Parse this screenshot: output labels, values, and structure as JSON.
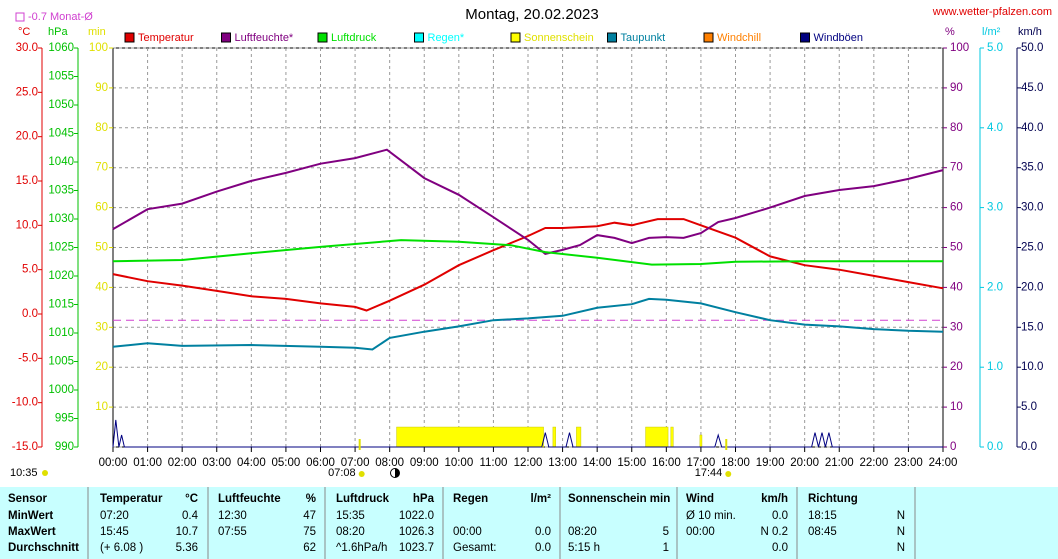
{
  "chart_data": {
    "type": "line",
    "title": "Montag, 20.02.2023",
    "source": "www.wetter-pfalzen.com",
    "monthly_mean": {
      "label": "-0.7 Monat-Ø",
      "value": -0.7,
      "color": "#d040d0"
    },
    "now": {
      "label": "10:35"
    },
    "sunrise": {
      "label": "07:08",
      "x": 7.133
    },
    "sunset": {
      "label": "17:44",
      "x": 17.733
    },
    "xlim": [
      0,
      24
    ],
    "xticks": [
      {
        "value": 0,
        "label": "00:00"
      },
      {
        "value": 1,
        "label": "01:00"
      },
      {
        "value": 2,
        "label": "02:00"
      },
      {
        "value": 3,
        "label": "03:00"
      },
      {
        "value": 4,
        "label": "04:00"
      },
      {
        "value": 5,
        "label": "05:00"
      },
      {
        "value": 6,
        "label": "06:00"
      },
      {
        "value": 7,
        "label": "07:00"
      },
      {
        "value": 8,
        "label": "08:00"
      },
      {
        "value": 9,
        "label": "09:00"
      },
      {
        "value": 10,
        "label": "10:00"
      },
      {
        "value": 11,
        "label": "11:00"
      },
      {
        "value": 12,
        "label": "12:00"
      },
      {
        "value": 13,
        "label": "13:00"
      },
      {
        "value": 14,
        "label": "14:00"
      },
      {
        "value": 15,
        "label": "15:00"
      },
      {
        "value": 16,
        "label": "16:00"
      },
      {
        "value": 17,
        "label": "17:00"
      },
      {
        "value": 18,
        "label": "18:00"
      },
      {
        "value": 19,
        "label": "19:00"
      },
      {
        "value": 20,
        "label": "20:00"
      },
      {
        "value": 21,
        "label": "21:00"
      },
      {
        "value": 22,
        "label": "22:00"
      },
      {
        "value": 23,
        "label": "23:00"
      },
      {
        "value": 24,
        "label": "24:00"
      }
    ],
    "grid": true,
    "axes": {
      "temp": {
        "unit": "°C",
        "color": "#e00000",
        "lim": [
          -15,
          30
        ],
        "ticks": [
          {
            "value": 30,
            "label": "30.0"
          },
          {
            "value": 25,
            "label": "25.0"
          },
          {
            "value": 20,
            "label": "20.0"
          },
          {
            "value": 15,
            "label": "15.0"
          },
          {
            "value": 10,
            "label": "10.0"
          },
          {
            "value": 5,
            "label": "5.0"
          },
          {
            "value": 0,
            "label": "0.0"
          },
          {
            "value": -5,
            "label": "-5.0"
          },
          {
            "value": -10,
            "label": "-10.0"
          },
          {
            "value": -15,
            "label": "-15.0"
          }
        ]
      },
      "hpa": {
        "unit": "hPa",
        "color": "#00c000",
        "lim": [
          990,
          1060
        ],
        "ticks": [
          1060,
          1055,
          1050,
          1045,
          1040,
          1035,
          1030,
          1025,
          1020,
          1015,
          1010,
          1005,
          1000,
          995,
          990
        ]
      },
      "min": {
        "unit": "min",
        "color": "#e0e000",
        "lim": [
          0,
          100
        ],
        "ticks": [
          100,
          90,
          80,
          70,
          60,
          50,
          40,
          30,
          20,
          10
        ]
      },
      "pct": {
        "unit": "%",
        "color": "#800080",
        "lim": [
          0,
          100
        ],
        "ticks": [
          100,
          90,
          80,
          70,
          60,
          50,
          40,
          30,
          20,
          10,
          0
        ]
      },
      "rain": {
        "unit": "l/m²",
        "color": "#00c8e0",
        "lim": [
          0,
          5
        ],
        "ticks": [
          {
            "value": 5,
            "label": "5.0"
          },
          {
            "value": 4,
            "label": "4.0"
          },
          {
            "value": 3,
            "label": "3.0"
          },
          {
            "value": 2,
            "label": "2.0"
          },
          {
            "value": 1,
            "label": "1.0"
          },
          {
            "value": 0,
            "label": "0.0"
          }
        ]
      },
      "kmh": {
        "unit": "km/h",
        "color": "#000050",
        "lim": [
          0,
          50
        ],
        "ticks": [
          {
            "value": 50,
            "label": "50.0"
          },
          {
            "value": 45,
            "label": "45.0"
          },
          {
            "value": 40,
            "label": "40.0"
          },
          {
            "value": 35,
            "label": "35.0"
          },
          {
            "value": 30,
            "label": "30.0"
          },
          {
            "value": 25,
            "label": "25.0"
          },
          {
            "value": 20,
            "label": "20.0"
          },
          {
            "value": 15,
            "label": "15.0"
          },
          {
            "value": 10,
            "label": "10.0"
          },
          {
            "value": 5,
            "label": "5.0"
          },
          {
            "value": 0,
            "label": "0.0"
          }
        ]
      }
    },
    "series": [
      {
        "name": "Temperatur",
        "color": "#e00000",
        "axis": "temp",
        "x": [
          0,
          1,
          2,
          3,
          4,
          5,
          6,
          7,
          7.33,
          8,
          9,
          10,
          11,
          12,
          12.5,
          13,
          14,
          14.5,
          15,
          15.75,
          16.5,
          17,
          18,
          19,
          20,
          21,
          22,
          23,
          24
        ],
        "values": [
          4.5,
          3.7,
          3.2,
          2.6,
          2.0,
          1.7,
          1.2,
          0.8,
          0.4,
          1.5,
          3.3,
          5.5,
          7.2,
          8.8,
          9.7,
          9.7,
          9.9,
          10.3,
          10.0,
          10.7,
          10.7,
          10.0,
          8.6,
          6.5,
          5.5,
          5.0,
          4.3,
          3.6,
          2.9
        ]
      },
      {
        "name": "Luftfeuchte*",
        "color": "#800080",
        "axis": "pct",
        "x": [
          0,
          1,
          2,
          3,
          4,
          5,
          6,
          7,
          7.92,
          8.5,
          9,
          10,
          11,
          12,
          12.5,
          13,
          13.5,
          14,
          14.5,
          15,
          15.5,
          16,
          16.5,
          17,
          17.5,
          18,
          19,
          20,
          21,
          22,
          23,
          24
        ],
        "values": [
          54.6,
          59.6,
          61,
          64,
          66.7,
          68.7,
          71,
          72.4,
          74.5,
          70.7,
          67.4,
          63.2,
          57.6,
          51.9,
          48.4,
          49.4,
          50.6,
          53.1,
          52.4,
          51.1,
          52.4,
          52.6,
          52.4,
          53.6,
          56.4,
          57.4,
          60,
          62.9,
          64.4,
          65.4,
          67.2,
          69.4
        ]
      },
      {
        "name": "Luftdruck",
        "color": "#00e000",
        "axis": "hpa",
        "x": [
          0,
          2,
          4,
          6,
          8.33,
          10,
          11.5,
          12.5,
          14,
          15.58,
          17,
          18,
          20,
          24
        ],
        "values": [
          1022.6,
          1022.8,
          1024,
          1025.1,
          1026.3,
          1026,
          1025.4,
          1024.2,
          1023.2,
          1022.0,
          1022.1,
          1022.5,
          1022.6,
          1022.6
        ]
      },
      {
        "name": "Regen*",
        "color": "#00ffff",
        "axis": "rain",
        "x": [],
        "values": []
      },
      {
        "name": "Sonnenschein",
        "color": "#ffff00",
        "axis": "min",
        "bars": true,
        "x": [
          [
            8.2,
            12.45
          ],
          [
            12.72,
            12.8
          ],
          [
            13.4,
            13.53
          ],
          [
            15.4,
            16.05
          ],
          [
            16.13,
            16.2
          ],
          [
            16.97,
            17.03
          ]
        ],
        "values": [
          5,
          5,
          5,
          5,
          5,
          3
        ]
      },
      {
        "name": "Taupunkt",
        "color": "#0080a0",
        "axis": "temp",
        "x": [
          0,
          1,
          2,
          4,
          6,
          7,
          7.5,
          8,
          9,
          10,
          11,
          12,
          13,
          14,
          15,
          15.5,
          16,
          17,
          18,
          19,
          20,
          21,
          22,
          23,
          24
        ],
        "values": [
          -3.7,
          -3.3,
          -3.6,
          -3.5,
          -3.7,
          -3.8,
          -4.0,
          -2.7,
          -2.0,
          -1.4,
          -0.7,
          -0.5,
          -0.2,
          0.7,
          1.1,
          1.7,
          1.6,
          1.2,
          0.2,
          -0.7,
          -1.2,
          -1.4,
          -1.7,
          -1.9,
          -2.0
        ]
      },
      {
        "name": "Windchill",
        "color": "#ff8000",
        "axis": "temp",
        "x": [],
        "values": []
      },
      {
        "name": "Windböen",
        "color": "#000080",
        "axis": "kmh",
        "x": [
          0,
          0.08,
          0.17,
          0.25,
          0.33,
          12.4,
          12.5,
          12.6,
          13.1,
          13.2,
          13.3,
          17.4,
          17.5,
          17.6,
          20.2,
          20.3,
          20.4,
          20.5,
          20.6,
          20.7,
          20.8,
          24
        ],
        "values": [
          0,
          3.4,
          0,
          1.5,
          0,
          0,
          1.8,
          0,
          0,
          1.8,
          0,
          0,
          1.5,
          0,
          0,
          1.8,
          0,
          1.8,
          0,
          1.8,
          0,
          0
        ]
      }
    ]
  },
  "table": {
    "rows": [
      [
        "Sensor",
        "Temperatur",
        "°C",
        "Luftfeuchte",
        "%",
        "Luftdruck",
        "hPa",
        "Regen",
        "l/m²",
        "Sonnenschein min",
        null,
        "Wind",
        "km/h",
        "Richtung",
        null
      ],
      [
        "MinWert",
        "07:20",
        "0.4",
        "12:30",
        "47",
        "15:35",
        "1022.0",
        null,
        null,
        null,
        null,
        "Ø 10 min.",
        "0.0",
        "18:15",
        "N"
      ],
      [
        "MaxWert",
        "15:45",
        "10.7",
        "07:55",
        "75",
        "08:20",
        "1026.3",
        "00:00",
        "0.0",
        "08:20",
        "5",
        "00:00",
        "N 0.2",
        "08:45",
        "N"
      ],
      [
        "Durchschnitt",
        "(+ 6.08 )",
        "5.36",
        null,
        "62",
        "^1.6hPa/h",
        "1023.7",
        "Gesamt:",
        "0.0",
        "5:15 h",
        "1",
        null,
        "0.0",
        null,
        "N"
      ]
    ]
  }
}
